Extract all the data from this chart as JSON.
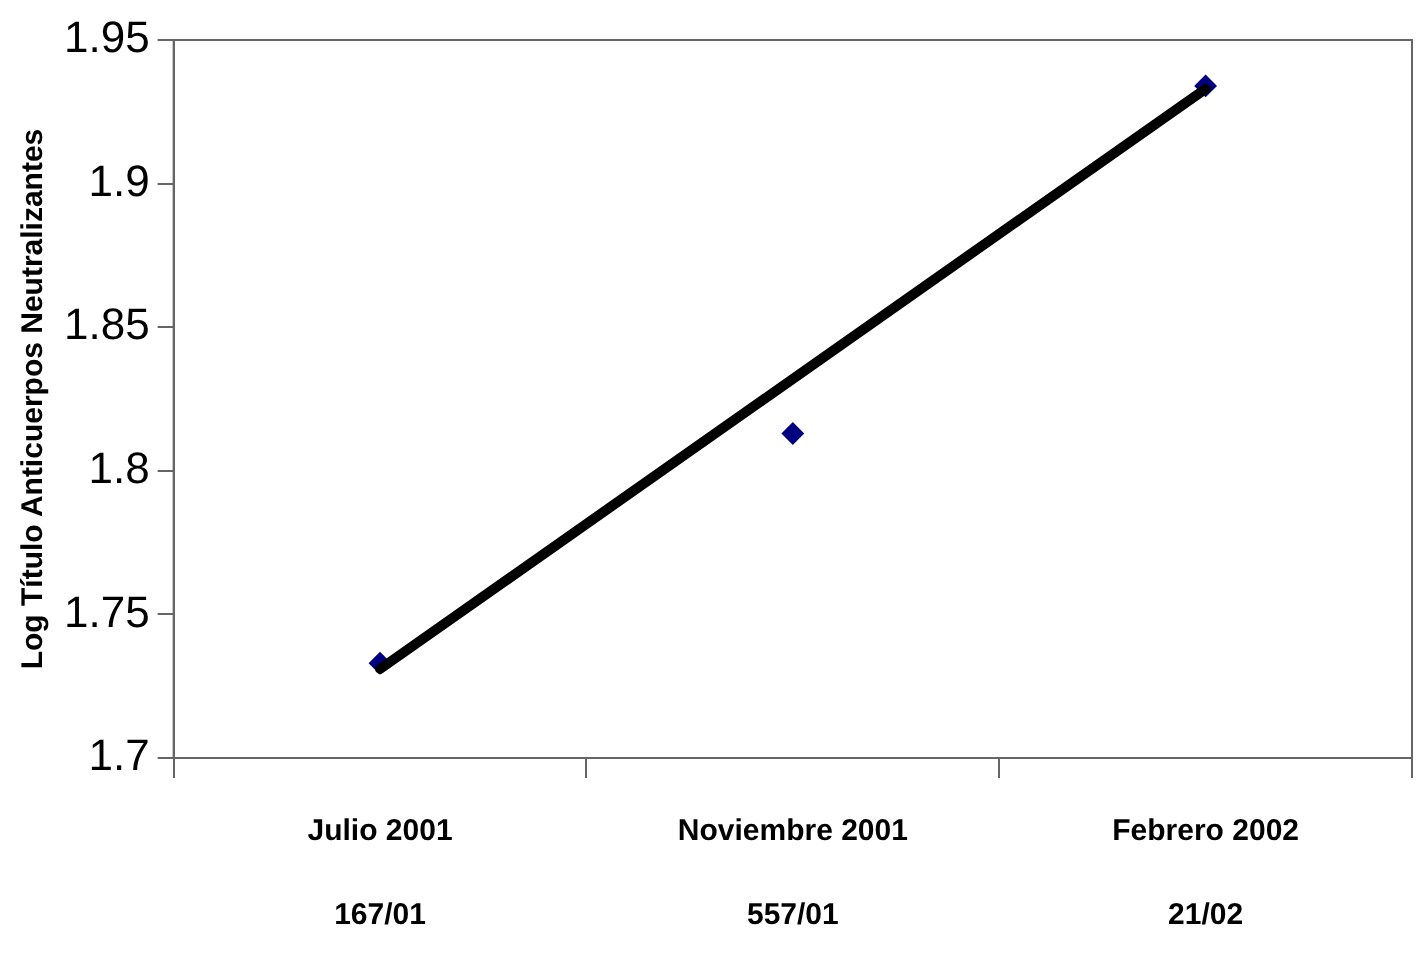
{
  "chart_data": {
    "type": "scatter",
    "ylabel": "Log Título Anticuerpos Neutralizantes",
    "categories": [
      "Julio 2001",
      "Noviembre 2001",
      "Febrero 2002"
    ],
    "ylim": [
      1.7,
      1.95
    ],
    "yticks": [
      1.7,
      1.75,
      1.8,
      1.85,
      1.9,
      1.95
    ],
    "grid": false,
    "legend": false,
    "marker": "diamond",
    "series": [
      {
        "type": "line",
        "x": [
          "Julio 2001",
          "Febrero 2002"
        ],
        "values": [
          1.731,
          1.933
        ],
        "color": "#000000",
        "marker": "none",
        "line_style": "solid"
      },
      {
        "values": [
          1.733,
          1.813,
          1.934
        ],
        "color": "#000080"
      }
    ],
    "annotations": [
      "167/01",
      "557/01",
      "21/02"
    ]
  }
}
